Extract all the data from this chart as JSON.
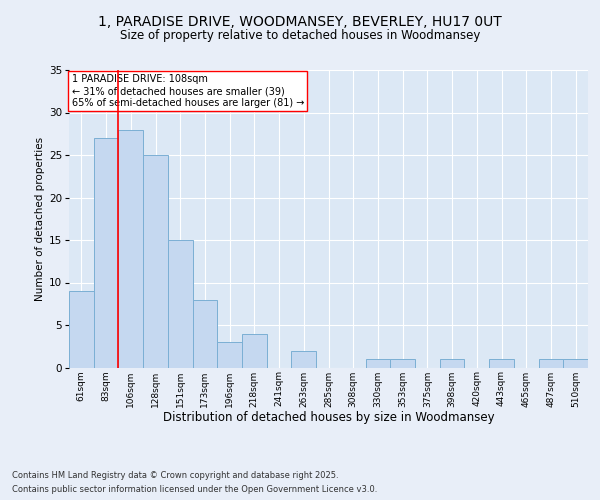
{
  "title1": "1, PARADISE DRIVE, WOODMANSEY, BEVERLEY, HU17 0UT",
  "title2": "Size of property relative to detached houses in Woodmansey",
  "xlabel": "Distribution of detached houses by size in Woodmansey",
  "ylabel": "Number of detached properties",
  "categories": [
    "61sqm",
    "83sqm",
    "106sqm",
    "128sqm",
    "151sqm",
    "173sqm",
    "196sqm",
    "218sqm",
    "241sqm",
    "263sqm",
    "285sqm",
    "308sqm",
    "330sqm",
    "353sqm",
    "375sqm",
    "398sqm",
    "420sqm",
    "443sqm",
    "465sqm",
    "487sqm",
    "510sqm"
  ],
  "values": [
    9,
    27,
    28,
    25,
    15,
    8,
    3,
    4,
    0,
    2,
    0,
    0,
    1,
    1,
    0,
    1,
    0,
    1,
    0,
    1,
    1
  ],
  "bar_color": "#c5d8f0",
  "bar_edge_color": "#7bafd4",
  "vline_color": "red",
  "vline_x_index": 2,
  "annotation_text": "1 PARADISE DRIVE: 108sqm\n← 31% of detached houses are smaller (39)\n65% of semi-detached houses are larger (81) →",
  "annotation_box_color": "white",
  "annotation_box_edge_color": "red",
  "footnote1": "Contains HM Land Registry data © Crown copyright and database right 2025.",
  "footnote2": "Contains public sector information licensed under the Open Government Licence v3.0.",
  "background_color": "#e8eef8",
  "plot_background": "#dce8f5",
  "ylim": [
    0,
    35
  ],
  "yticks": [
    0,
    5,
    10,
    15,
    20,
    25,
    30,
    35
  ]
}
